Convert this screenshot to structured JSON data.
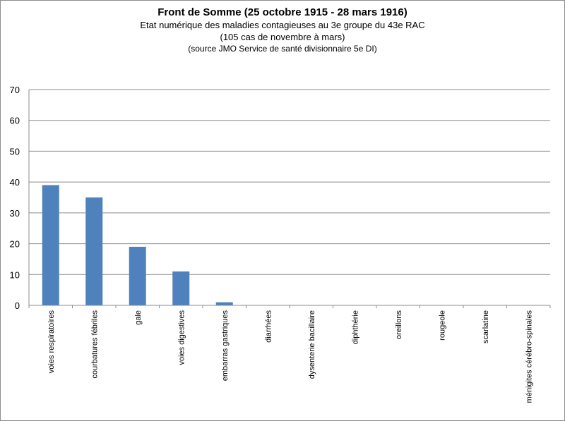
{
  "chart_data": {
    "type": "bar",
    "title": "Front de Somme (25 octobre 1915 - 28 mars 1916)",
    "subtitle_lines": [
      "Etat numérique des maladies contagieuses au 3e groupe du 43e RAC",
      "(105 cas de novembre à mars)",
      "(source JMO Service de santé divisionnaire 5e DI)"
    ],
    "xlabel": "",
    "ylabel": "",
    "ylim": [
      0,
      70
    ],
    "yticks": [
      0,
      10,
      20,
      30,
      40,
      50,
      60,
      70
    ],
    "grid": true,
    "bar_color": "#4f81bd",
    "categories": [
      "voies respiratoires",
      "courbatures fébriles",
      "gale",
      "voies digestives",
      "embarras gastriques",
      "diarrhées",
      "dysenterie bacillaire",
      "diphthérie",
      "oreillons",
      "rougeole",
      "scarlatine",
      "ménigites cérébro-spinales"
    ],
    "values": [
      39,
      35,
      19,
      11,
      1,
      0,
      0,
      0,
      0,
      0,
      0,
      0
    ]
  }
}
